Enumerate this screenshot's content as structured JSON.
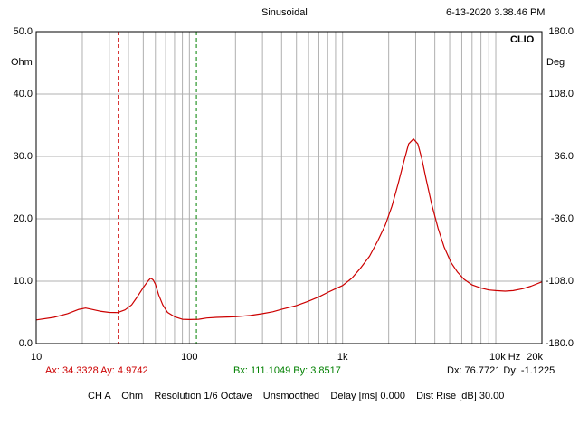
{
  "header": {
    "title": "Sinusoidal",
    "timestamp": "6-13-2020 3.38.46 PM",
    "brand": "CLIO"
  },
  "axes": {
    "left_unit": "Ohm",
    "right_unit": "Deg",
    "left_ticks": [
      "50.0",
      "40.0",
      "30.0",
      "20.0",
      "10.0",
      "0.0"
    ],
    "right_ticks": [
      "180.0",
      "108.0",
      "36.0",
      "-36.0",
      "-108.0",
      "-180.0"
    ],
    "x_ticks": [
      "10",
      "100",
      "1k",
      "10k Hz",
      "20k"
    ]
  },
  "cursors": {
    "a": {
      "text": "Ax: 34.3328   Ay: 4.9742",
      "x": 34.3328,
      "y": 4.9742,
      "color": "#cc0000"
    },
    "b": {
      "text": "Bx: 111.1049   By: 3.8517",
      "x": 111.1049,
      "y": 3.8517,
      "color": "#008000"
    },
    "delta": "Dx: 76.7721   Dy: -1.1225"
  },
  "footer": {
    "settings": "CH A    Ohm    Resolution 1/6 Octave    Unsmoothed    Delay [ms] 0.000    Dist Rise [dB] 30.00"
  },
  "colors": {
    "curve": "#cc0000",
    "grid": "#b0b0b0",
    "frame": "#000000"
  },
  "chart_data": {
    "type": "line",
    "x_scale": "log",
    "xlim": [
      10,
      20000
    ],
    "ylim": [
      0,
      50
    ],
    "y2lim": [
      -180,
      180
    ],
    "series": [
      {
        "color": "#cc0000",
        "x": [
          10,
          13,
          16,
          19,
          21,
          23,
          26,
          30,
          34,
          38,
          42,
          46,
          50,
          54,
          56,
          58,
          60,
          63,
          67,
          72,
          80,
          90,
          100,
          115,
          130,
          150,
          200,
          250,
          300,
          350,
          400,
          500,
          600,
          700,
          800,
          900,
          1000,
          1150,
          1300,
          1500,
          1700,
          1900,
          2100,
          2300,
          2500,
          2700,
          2900,
          3100,
          3300,
          3500,
          3800,
          4200,
          4600,
          5100,
          5600,
          6200,
          7000,
          8000,
          9000,
          10000,
          11500,
          13000,
          15000,
          17000,
          20000
        ],
        "y": [
          3.8,
          4.2,
          4.8,
          5.5,
          5.7,
          5.5,
          5.2,
          5.0,
          4.97,
          5.4,
          6.2,
          7.6,
          9.0,
          10.1,
          10.5,
          10.2,
          9.5,
          7.8,
          6.2,
          5.0,
          4.3,
          3.9,
          3.85,
          3.9,
          4.1,
          4.2,
          4.3,
          4.5,
          4.8,
          5.1,
          5.5,
          6.1,
          6.8,
          7.5,
          8.2,
          8.8,
          9.3,
          10.5,
          12.0,
          14.0,
          16.5,
          19.0,
          22.0,
          25.5,
          29.0,
          32.0,
          32.8,
          32.0,
          29.5,
          26.5,
          22.5,
          18.5,
          15.5,
          13.0,
          11.5,
          10.3,
          9.4,
          8.9,
          8.6,
          8.5,
          8.4,
          8.5,
          8.8,
          9.2,
          9.9
        ]
      }
    ]
  }
}
